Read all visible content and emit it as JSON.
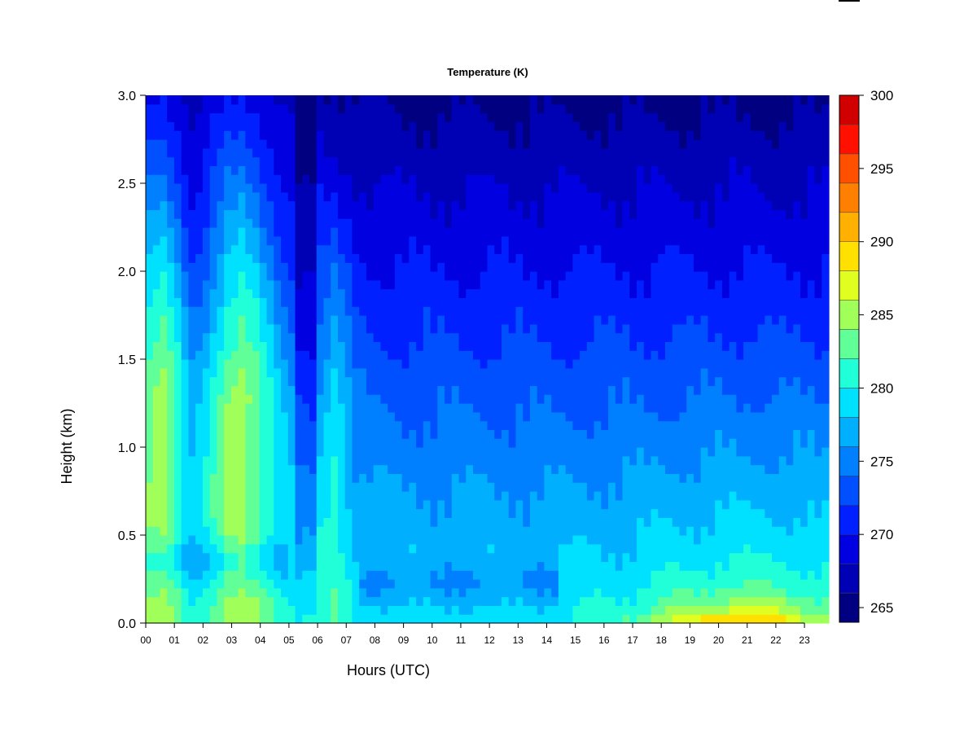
{
  "chart_data": {
    "type": "heatmap",
    "title": "Temperature (K)",
    "xlabel": "Hours (UTC)",
    "ylabel": "Height (km)",
    "x_ticks": [
      "00",
      "01",
      "02",
      "03",
      "04",
      "05",
      "06",
      "07",
      "08",
      "09",
      "10",
      "11",
      "12",
      "13",
      "14",
      "15",
      "16",
      "17",
      "18",
      "19",
      "20",
      "21",
      "22",
      "23"
    ],
    "xlim": [
      0,
      23.85
    ],
    "y_ticks": [
      0.0,
      0.5,
      1.0,
      1.5,
      2.0,
      2.5,
      3.0
    ],
    "y_tick_labels": [
      "0.0",
      "0.5",
      "1.0",
      "1.5",
      "2.0",
      "2.5",
      "3.0"
    ],
    "ylim": [
      0,
      3.0
    ],
    "colorbar": {
      "min": 264,
      "max": 300,
      "step": 2,
      "labels": [
        265,
        270,
        275,
        280,
        285,
        290,
        295,
        300
      ],
      "colors": [
        "#000080",
        "#0000b4",
        "#0000e0",
        "#0020ff",
        "#0050ff",
        "#0080ff",
        "#00b0ff",
        "#00e0ff",
        "#20ffd8",
        "#60ff98",
        "#a0ff58",
        "#e0ff20",
        "#ffe000",
        "#ffb000",
        "#ff8000",
        "#ff5000",
        "#ff1000",
        "#d00000",
        "#8b0000"
      ]
    },
    "grid": false
  }
}
